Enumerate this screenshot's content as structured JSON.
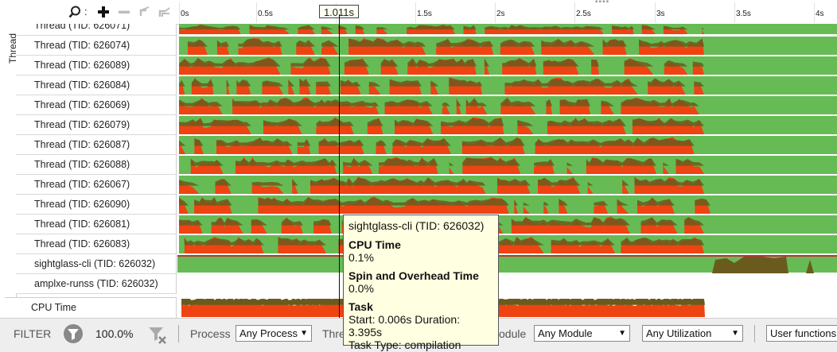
{
  "toolbar": {
    "icons": [
      "search-icon",
      "add-icon",
      "remove-icon",
      "undo-zoom-icon",
      "reset-zoom-icon"
    ],
    "colon": ":"
  },
  "timeline": {
    "ticks": [
      "0s",
      "0.5s",
      "1s",
      "1.5s",
      "2s",
      "2.5s",
      "3s",
      "3.5s",
      "4s"
    ],
    "cursor_label": "1.011s"
  },
  "grouping_label": "Thread",
  "rows": [
    {
      "label": "Thread (TID: 626071)"
    },
    {
      "label": "Thread (TID: 626074)"
    },
    {
      "label": "Thread (TID: 626089)"
    },
    {
      "label": "Thread (TID: 626084)"
    },
    {
      "label": "Thread (TID: 626069)"
    },
    {
      "label": "Thread (TID: 626079)"
    },
    {
      "label": "Thread (TID: 626087)"
    },
    {
      "label": "Thread (TID: 626088)"
    },
    {
      "label": "Thread (TID: 626067)"
    },
    {
      "label": "Thread (TID: 626090)"
    },
    {
      "label": "Thread (TID: 626081)"
    },
    {
      "label": "Thread (TID: 626083)"
    },
    {
      "label": "sightglass-cli (TID: 626032)"
    },
    {
      "label": "amplxe-runss (TID: 626032)"
    }
  ],
  "cpu_row": {
    "label": "CPU Time"
  },
  "colors": {
    "running": "#66bb55",
    "cpu": "#ee4411",
    "spin": "#6b5a1e",
    "tooltip_bg": "#ffffe1"
  },
  "tooltip": {
    "title": "sightglass-cli (TID: 626032)",
    "cpu_heading": "CPU Time",
    "cpu_value": "0.1%",
    "spin_heading": "Spin and Overhead Time",
    "spin_value": "0.0%",
    "task_heading": "Task",
    "task_line1": "Start: 0.006s Duration: 3.395s",
    "task_line2": "Task Type: compilation"
  },
  "filter": {
    "label": "FILTER",
    "percent": "100.0%",
    "process_label": "Process",
    "process_value": "Any Process",
    "thread_label": "Thre",
    "module_label": "odule",
    "module_value": "Any Module",
    "utilization_value": "Any Utilization",
    "functions_value": "User functions"
  }
}
